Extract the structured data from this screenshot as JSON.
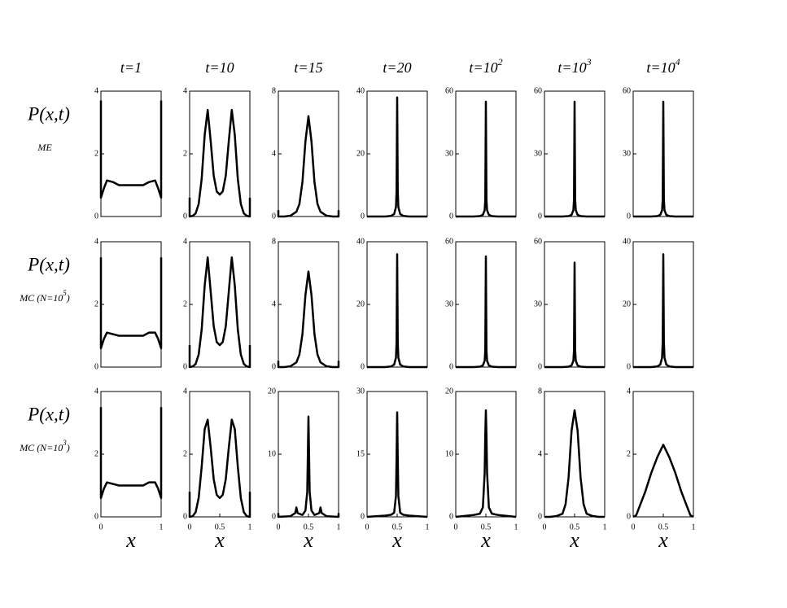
{
  "chart_data": [
    {
      "type": "line",
      "title": "t=1",
      "ylabel": "P(x,t)",
      "ylabel_note": "ME",
      "ylim": [
        0,
        4
      ],
      "yticks": [
        0,
        2,
        4
      ],
      "color": "#000000",
      "x": [
        0,
        0,
        0.05,
        0.1,
        0.2,
        0.3,
        0.5,
        0.7,
        0.8,
        0.9,
        0.95,
        1,
        1
      ],
      "series": [
        {
          "values": [
            3.7,
            0.6,
            0.9,
            1.15,
            1.1,
            1.0,
            1.0,
            1.0,
            1.1,
            1.15,
            0.9,
            0.6,
            3.7
          ]
        }
      ]
    },
    {
      "type": "line",
      "title": "t=10",
      "ylim": [
        0,
        4
      ],
      "yticks": [
        0,
        2,
        4
      ],
      "color": "#000000",
      "x": [
        0,
        0,
        0.05,
        0.1,
        0.15,
        0.2,
        0.25,
        0.3,
        0.35,
        0.4,
        0.45,
        0.5,
        0.55,
        0.6,
        0.65,
        0.7,
        0.75,
        0.8,
        0.85,
        0.9,
        0.95,
        1,
        1
      ],
      "series": [
        {
          "values": [
            0.6,
            0,
            0.02,
            0.1,
            0.4,
            1.2,
            2.6,
            3.4,
            2.4,
            1.3,
            0.8,
            0.7,
            0.8,
            1.3,
            2.4,
            3.4,
            2.6,
            1.2,
            0.4,
            0.1,
            0.02,
            0,
            0.6
          ]
        }
      ]
    },
    {
      "type": "line",
      "title": "t=15",
      "ylim": [
        0,
        8
      ],
      "yticks": [
        0,
        4,
        8
      ],
      "color": "#000000",
      "x": [
        0,
        0,
        0.1,
        0.2,
        0.3,
        0.35,
        0.4,
        0.45,
        0.5,
        0.55,
        0.6,
        0.65,
        0.7,
        0.8,
        0.9,
        1,
        1
      ],
      "series": [
        {
          "values": [
            0.4,
            0,
            0,
            0.05,
            0.3,
            0.8,
            2.2,
            4.8,
            6.4,
            4.8,
            2.2,
            0.8,
            0.3,
            0.05,
            0,
            0,
            0.4
          ]
        }
      ]
    },
    {
      "type": "line",
      "title": "t=20",
      "ylim": [
        0,
        40
      ],
      "yticks": [
        0,
        20,
        40
      ],
      "color": "#000000",
      "x": [
        0,
        0.3,
        0.4,
        0.45,
        0.48,
        0.49,
        0.5,
        0.51,
        0.52,
        0.55,
        0.6,
        0.7,
        1
      ],
      "series": [
        {
          "values": [
            0,
            0,
            0.2,
            0.8,
            3,
            8,
            38,
            8,
            3,
            0.8,
            0.2,
            0,
            0
          ]
        }
      ]
    },
    {
      "type": "line",
      "title": "t=10",
      "title_sup": "2",
      "ylim": [
        0,
        60
      ],
      "yticks": [
        0,
        30,
        60
      ],
      "color": "#000000",
      "x": [
        0,
        0.3,
        0.4,
        0.45,
        0.48,
        0.49,
        0.5,
        0.51,
        0.52,
        0.55,
        0.6,
        0.7,
        1
      ],
      "series": [
        {
          "values": [
            0,
            0,
            0.2,
            0.8,
            3,
            8,
            55,
            8,
            3,
            0.8,
            0.2,
            0,
            0
          ]
        }
      ]
    },
    {
      "type": "line",
      "title": "t=10",
      "title_sup": "3",
      "ylim": [
        0,
        60
      ],
      "yticks": [
        0,
        30,
        60
      ],
      "color": "#000000",
      "x": [
        0,
        0.3,
        0.4,
        0.45,
        0.48,
        0.49,
        0.5,
        0.51,
        0.52,
        0.55,
        0.6,
        0.7,
        1
      ],
      "series": [
        {
          "values": [
            0,
            0,
            0.2,
            0.8,
            3,
            8,
            55,
            8,
            3,
            0.8,
            0.2,
            0,
            0
          ]
        }
      ]
    },
    {
      "type": "line",
      "title": "t=10",
      "title_sup": "4",
      "ylim": [
        0,
        60
      ],
      "yticks": [
        0,
        30,
        60
      ],
      "color": "#000000",
      "x": [
        0,
        0.3,
        0.4,
        0.45,
        0.48,
        0.49,
        0.5,
        0.51,
        0.52,
        0.55,
        0.6,
        0.7,
        1
      ],
      "series": [
        {
          "values": [
            0,
            0,
            0.2,
            0.8,
            3,
            8,
            55,
            8,
            3,
            0.8,
            0.2,
            0,
            0
          ]
        }
      ]
    },
    {
      "type": "line",
      "ylabel": "P(x,t)",
      "ylabel_note": "MC (N=10",
      "ylabel_note_sup": "5",
      "ylabel_note_end": ")",
      "ylim": [
        0,
        4
      ],
      "yticks": [
        0,
        2,
        4
      ],
      "color": "#000000",
      "x": [
        0,
        0,
        0.05,
        0.1,
        0.2,
        0.3,
        0.5,
        0.7,
        0.8,
        0.9,
        0.95,
        1,
        1
      ],
      "series": [
        {
          "values": [
            3.5,
            0.6,
            0.9,
            1.1,
            1.05,
            1.0,
            1.0,
            1.0,
            1.1,
            1.1,
            0.9,
            0.6,
            3.5
          ]
        }
      ]
    },
    {
      "type": "line",
      "ylim": [
        0,
        4
      ],
      "yticks": [
        0,
        2,
        4
      ],
      "color": "#000000",
      "x": [
        0,
        0,
        0.05,
        0.1,
        0.15,
        0.2,
        0.25,
        0.3,
        0.35,
        0.4,
        0.45,
        0.5,
        0.55,
        0.6,
        0.65,
        0.7,
        0.75,
        0.8,
        0.85,
        0.9,
        0.95,
        1,
        1
      ],
      "series": [
        {
          "values": [
            0.7,
            0,
            0.02,
            0.1,
            0.4,
            1.2,
            2.6,
            3.5,
            2.4,
            1.3,
            0.8,
            0.7,
            0.8,
            1.3,
            2.4,
            3.5,
            2.6,
            1.2,
            0.4,
            0.1,
            0.02,
            0,
            0.7
          ]
        }
      ]
    },
    {
      "type": "line",
      "ylim": [
        0,
        8
      ],
      "yticks": [
        0,
        4,
        8
      ],
      "color": "#000000",
      "x": [
        0,
        0,
        0.1,
        0.2,
        0.3,
        0.35,
        0.4,
        0.45,
        0.5,
        0.55,
        0.6,
        0.65,
        0.7,
        0.8,
        0.9,
        1,
        1
      ],
      "series": [
        {
          "values": [
            0.4,
            0,
            0,
            0.05,
            0.3,
            0.8,
            2.1,
            4.6,
            6.1,
            4.6,
            2.1,
            0.8,
            0.3,
            0.05,
            0,
            0,
            0.4
          ]
        }
      ]
    },
    {
      "type": "line",
      "ylim": [
        0,
        40
      ],
      "yticks": [
        0,
        20,
        40
      ],
      "color": "#000000",
      "x": [
        0,
        0.3,
        0.4,
        0.45,
        0.48,
        0.49,
        0.5,
        0.51,
        0.52,
        0.55,
        0.6,
        0.7,
        1
      ],
      "series": [
        {
          "values": [
            0,
            0,
            0.2,
            0.8,
            3,
            8,
            36,
            8,
            3,
            0.8,
            0.2,
            0,
            0
          ]
        }
      ]
    },
    {
      "type": "line",
      "ylim": [
        0,
        60
      ],
      "yticks": [
        0,
        30,
        60
      ],
      "color": "#000000",
      "x": [
        0,
        0.3,
        0.4,
        0.45,
        0.48,
        0.49,
        0.5,
        0.51,
        0.52,
        0.55,
        0.6,
        0.7,
        1
      ],
      "series": [
        {
          "values": [
            0,
            0,
            0.2,
            0.8,
            3,
            8,
            53,
            8,
            3,
            0.8,
            0.2,
            0,
            0
          ]
        }
      ]
    },
    {
      "type": "line",
      "ylim": [
        0,
        60
      ],
      "yticks": [
        0,
        30,
        60
      ],
      "color": "#000000",
      "x": [
        0,
        0.3,
        0.4,
        0.45,
        0.48,
        0.49,
        0.5,
        0.51,
        0.52,
        0.55,
        0.6,
        0.7,
        1
      ],
      "series": [
        {
          "values": [
            0,
            0,
            0.2,
            0.8,
            3,
            8,
            50,
            8,
            3,
            0.8,
            0.2,
            0,
            0
          ]
        }
      ]
    },
    {
      "type": "line",
      "ylim": [
        0,
        40
      ],
      "yticks": [
        0,
        20,
        40
      ],
      "color": "#000000",
      "x": [
        0,
        0.3,
        0.4,
        0.45,
        0.48,
        0.49,
        0.5,
        0.51,
        0.52,
        0.55,
        0.6,
        0.7,
        1
      ],
      "series": [
        {
          "values": [
            0,
            0,
            0.2,
            0.8,
            3,
            8,
            36,
            8,
            3,
            0.8,
            0.2,
            0,
            0
          ]
        }
      ]
    },
    {
      "type": "line",
      "ylabel": "P(x,t)",
      "ylabel_note": "MC (N=10",
      "ylabel_note_sup": "3",
      "ylabel_note_end": ")",
      "xlabel": "x",
      "xticks": [
        0,
        1
      ],
      "ylim": [
        0,
        4
      ],
      "yticks": [
        0,
        2,
        4
      ],
      "color": "#000000",
      "x": [
        0,
        0,
        0.05,
        0.1,
        0.2,
        0.3,
        0.5,
        0.7,
        0.8,
        0.9,
        0.95,
        1,
        1
      ],
      "series": [
        {
          "values": [
            3.5,
            0.6,
            0.9,
            1.1,
            1.05,
            1.0,
            1.0,
            1.0,
            1.1,
            1.1,
            0.9,
            0.6,
            3.5
          ]
        }
      ]
    },
    {
      "type": "line",
      "xlabel": "x",
      "xticks": [
        0,
        0.5,
        1
      ],
      "ylim": [
        0,
        4
      ],
      "yticks": [
        0,
        2,
        4
      ],
      "color": "#000000",
      "x": [
        0,
        0,
        0.05,
        0.1,
        0.15,
        0.2,
        0.25,
        0.3,
        0.35,
        0.4,
        0.45,
        0.5,
        0.55,
        0.6,
        0.65,
        0.7,
        0.75,
        0.8,
        0.85,
        0.9,
        0.95,
        1,
        1
      ],
      "series": [
        {
          "values": [
            0.8,
            0,
            0.02,
            0.15,
            0.6,
            1.6,
            2.8,
            3.1,
            2.2,
            1.2,
            0.7,
            0.6,
            0.7,
            1.2,
            2.2,
            3.1,
            2.8,
            1.6,
            0.6,
            0.15,
            0.02,
            0,
            0.8
          ]
        }
      ]
    },
    {
      "type": "line",
      "xlabel": "x",
      "xticks": [
        0,
        0.5,
        1
      ],
      "ylim": [
        0,
        20
      ],
      "yticks": [
        0,
        10,
        20
      ],
      "color": "#000000",
      "x": [
        0,
        0,
        0.2,
        0.28,
        0.3,
        0.32,
        0.4,
        0.45,
        0.48,
        0.5,
        0.52,
        0.55,
        0.6,
        0.68,
        0.7,
        0.72,
        0.8,
        1,
        1
      ],
      "series": [
        {
          "values": [
            0.6,
            0,
            0.1,
            0.6,
            1.5,
            0.6,
            0.3,
            1,
            4,
            16,
            4,
            1,
            0.3,
            0.6,
            1.5,
            0.6,
            0.1,
            0,
            0.6
          ]
        }
      ]
    },
    {
      "type": "line",
      "xlabel": "x",
      "xticks": [
        0,
        0.5,
        1
      ],
      "ylim": [
        0,
        30
      ],
      "yticks": [
        0,
        15,
        30
      ],
      "color": "#000000",
      "x": [
        0,
        0.3,
        0.4,
        0.45,
        0.48,
        0.49,
        0.5,
        0.51,
        0.52,
        0.55,
        0.6,
        0.7,
        1
      ],
      "series": [
        {
          "values": [
            0,
            0.3,
            0.5,
            1,
            5,
            14,
            25,
            14,
            5,
            1,
            0.5,
            0.3,
            0
          ]
        }
      ]
    },
    {
      "type": "line",
      "xlabel": "x",
      "xticks": [
        0,
        0.5,
        1
      ],
      "ylim": [
        0,
        20
      ],
      "yticks": [
        0,
        10,
        20
      ],
      "color": "#000000",
      "x": [
        0,
        0.3,
        0.4,
        0.45,
        0.48,
        0.49,
        0.5,
        0.51,
        0.52,
        0.55,
        0.6,
        0.7,
        1
      ],
      "series": [
        {
          "values": [
            0,
            0.3,
            0.5,
            1.5,
            7,
            13,
            17,
            13,
            7,
            1.5,
            0.5,
            0.3,
            0
          ]
        }
      ]
    },
    {
      "type": "line",
      "xlabel": "x",
      "xticks": [
        0,
        0.5,
        1
      ],
      "ylim": [
        0,
        8
      ],
      "yticks": [
        0,
        4,
        8
      ],
      "color": "#000000",
      "x": [
        0,
        0.1,
        0.2,
        0.3,
        0.35,
        0.4,
        0.45,
        0.5,
        0.55,
        0.6,
        0.65,
        0.7,
        0.8,
        0.9,
        1
      ],
      "series": [
        {
          "values": [
            0,
            0,
            0.05,
            0.2,
            0.8,
            2.5,
            5.5,
            6.8,
            5.5,
            2.5,
            0.8,
            0.2,
            0.05,
            0,
            0
          ]
        }
      ]
    },
    {
      "type": "line",
      "xlabel": "x",
      "xticks": [
        0,
        0.5,
        1
      ],
      "ylim": [
        0,
        4
      ],
      "yticks": [
        0,
        2,
        4
      ],
      "color": "#000000",
      "x": [
        0,
        0.05,
        0.1,
        0.2,
        0.3,
        0.4,
        0.5,
        0.6,
        0.7,
        0.8,
        0.9,
        0.95,
        1
      ],
      "series": [
        {
          "values": [
            0,
            0.05,
            0.3,
            0.8,
            1.4,
            1.9,
            2.3,
            1.9,
            1.4,
            0.8,
            0.3,
            0.05,
            0
          ]
        }
      ]
    }
  ]
}
